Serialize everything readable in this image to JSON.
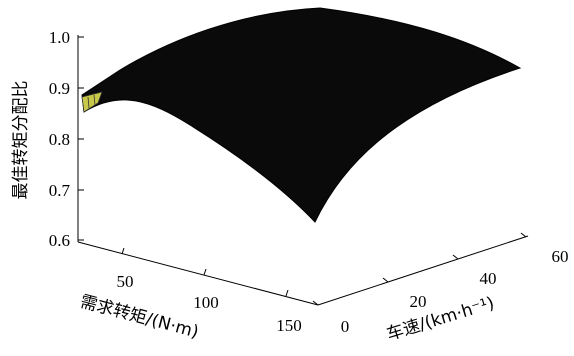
{
  "chart_data": {
    "type": "surface",
    "title": "",
    "zlabel": "最佳转矩分配比",
    "xlabel": "需求转矩/(N·m)",
    "ylabel": "车速/(km·h⁻¹)",
    "zlim": [
      0.6,
      1.0
    ],
    "z_ticks": [
      "0.6",
      "0.7",
      "0.8",
      "0.9",
      "1.0"
    ],
    "x_ticks": [
      "50",
      "100",
      "150"
    ],
    "y_ticks": [
      "0",
      "20",
      "40",
      "60"
    ],
    "surface": {
      "torque": [
        10,
        160
      ],
      "speed": [
        0,
        60
      ],
      "ratio_corners": {
        "low_torque_low_speed": 0.86,
        "low_torque_high_speed": 0.99,
        "high_torque_low_speed": 0.63,
        "high_torque_high_speed": 0.94
      },
      "peak": {
        "torque": 70,
        "speed": 50,
        "ratio": 1.0
      }
    },
    "grid": false,
    "surface_color": "#0a0a0a",
    "edge_highlight_color": "#c8c84a"
  }
}
